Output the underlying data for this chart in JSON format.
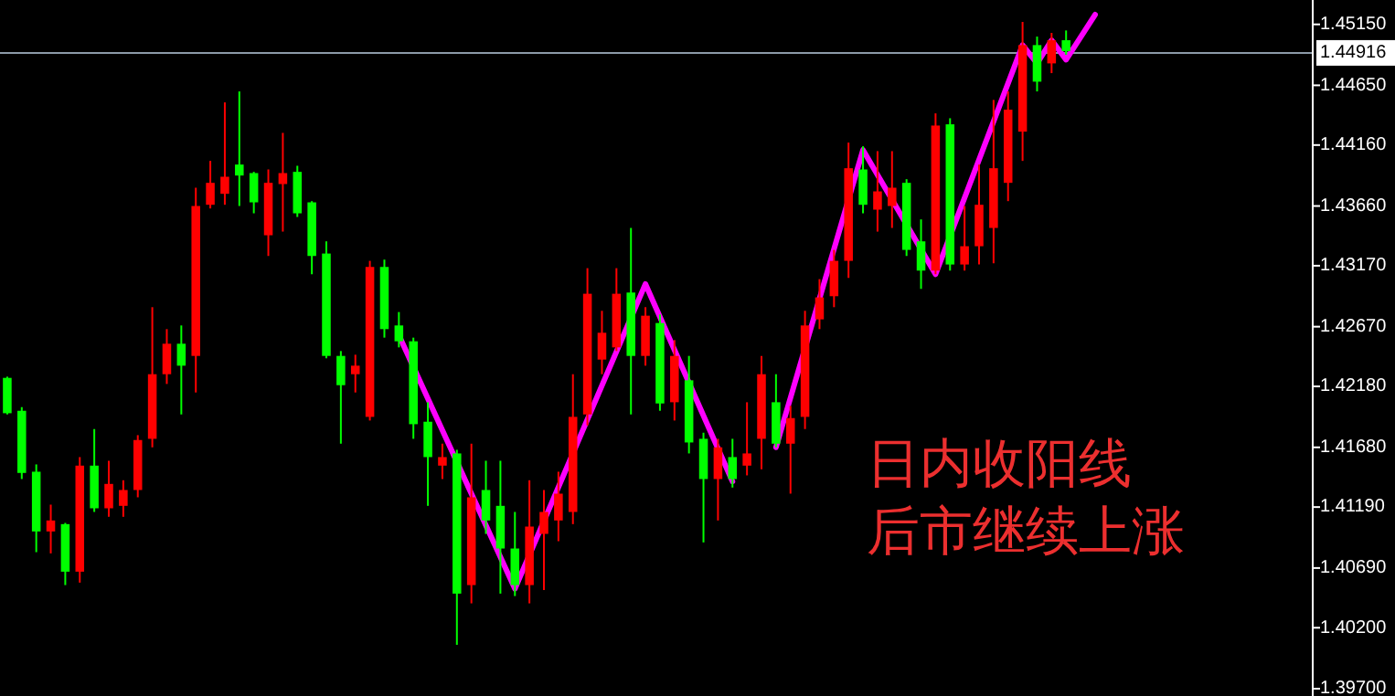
{
  "chart_data": {
    "type": "candlestick",
    "categories": [
      null,
      null,
      null,
      null,
      null,
      null,
      null,
      null,
      null,
      null,
      null,
      null,
      null,
      null,
      null,
      null,
      null,
      null,
      null,
      null,
      null,
      null,
      null,
      null,
      null,
      null,
      null,
      null,
      null,
      null,
      null,
      null,
      null,
      null,
      null,
      null,
      null,
      null,
      null,
      null,
      null,
      null,
      null,
      null,
      null,
      null,
      null,
      null,
      null,
      null,
      null,
      null,
      null,
      null,
      null,
      null,
      null,
      null,
      null,
      null,
      null,
      null,
      null,
      null,
      null,
      null,
      null,
      null,
      null,
      null,
      null,
      null,
      null,
      null,
      null,
      null,
      null,
      null,
      null,
      null,
      null,
      null,
      null,
      null,
      null,
      null,
      null,
      null,
      null,
      null
    ],
    "ohlc": [
      [
        1.4225,
        1.4226,
        1.4195,
        1.4196
      ],
      [
        1.4198,
        1.4201,
        1.4142,
        1.4147
      ],
      [
        1.4148,
        1.4154,
        1.4082,
        1.4099
      ],
      [
        1.4099,
        1.4121,
        1.4081,
        1.4108
      ],
      [
        1.4105,
        1.4106,
        1.4055,
        1.4066
      ],
      [
        1.4066,
        1.416,
        1.4057,
        1.4153
      ],
      [
        1.4153,
        1.4183,
        1.4115,
        1.4118
      ],
      [
        1.4118,
        1.4157,
        1.4111,
        1.4138
      ],
      [
        1.412,
        1.4141,
        1.4111,
        1.4133
      ],
      [
        1.4133,
        1.4178,
        1.4127,
        1.4174
      ],
      [
        1.4175,
        1.4283,
        1.4168,
        1.4228
      ],
      [
        1.4228,
        1.4265,
        1.422,
        1.4253
      ],
      [
        1.4253,
        1.4268,
        1.4195,
        1.4235
      ],
      [
        1.4243,
        1.4381,
        1.4213,
        1.4366
      ],
      [
        1.4367,
        1.4403,
        1.4364,
        1.4385
      ],
      [
        1.4376,
        1.4451,
        1.4367,
        1.439
      ],
      [
        1.44,
        1.446,
        1.4366,
        1.4391
      ],
      [
        1.4393,
        1.4394,
        1.436,
        1.4369
      ],
      [
        1.4342,
        1.4396,
        1.4325,
        1.4385
      ],
      [
        1.4384,
        1.4426,
        1.4345,
        1.4393
      ],
      [
        1.4394,
        1.4399,
        1.4357,
        1.436
      ],
      [
        1.4369,
        1.437,
        1.431,
        1.4325
      ],
      [
        1.4327,
        1.4337,
        1.4241,
        1.4243
      ],
      [
        1.4243,
        1.4247,
        1.4171,
        1.4219
      ],
      [
        1.4228,
        1.4244,
        1.4213,
        1.4235
      ],
      [
        1.4193,
        1.4321,
        1.419,
        1.4316
      ],
      [
        1.4316,
        1.4322,
        1.4258,
        1.4265
      ],
      [
        1.4268,
        1.4279,
        1.425,
        1.4255
      ],
      [
        1.4255,
        1.4258,
        1.4175,
        1.4187
      ],
      [
        1.4189,
        1.4205,
        1.412,
        1.416
      ],
      [
        1.4153,
        1.4171,
        1.4142,
        1.416
      ],
      [
        1.4163,
        1.4166,
        1.4006,
        1.4048
      ],
      [
        1.4055,
        1.4171,
        1.404,
        1.4127
      ],
      [
        1.4133,
        1.4157,
        1.4097,
        1.4108
      ],
      [
        1.412,
        1.4157,
        1.4048,
        1.4085
      ],
      [
        1.4085,
        1.4115,
        1.4046,
        1.4055
      ],
      [
        1.4055,
        1.4141,
        1.404,
        1.4103
      ],
      [
        1.4097,
        1.4133,
        1.4051,
        1.4115
      ],
      [
        1.4108,
        1.4148,
        1.4091,
        1.413
      ],
      [
        1.4115,
        1.4228,
        1.4105,
        1.4193
      ],
      [
        1.4195,
        1.4315,
        1.4186,
        1.4294
      ],
      [
        1.424,
        1.428,
        1.4228,
        1.4262
      ],
      [
        1.425,
        1.4315,
        1.4247,
        1.4294
      ],
      [
        1.4295,
        1.4348,
        1.4195,
        1.4243
      ],
      [
        1.4243,
        1.4283,
        1.4235,
        1.4276
      ],
      [
        1.427,
        1.4277,
        1.4198,
        1.4204
      ],
      [
        1.4205,
        1.4256,
        1.419,
        1.4243
      ],
      [
        1.4223,
        1.4243,
        1.4163,
        1.4172
      ],
      [
        1.4175,
        1.418,
        1.409,
        1.4142
      ],
      [
        1.4142,
        1.4175,
        1.4108,
        1.4168
      ],
      [
        1.416,
        1.4175,
        1.4135,
        1.4142
      ],
      [
        1.4153,
        1.4205,
        1.4145,
        1.4163
      ],
      [
        1.4175,
        1.4243,
        1.415,
        1.4228
      ],
      [
        1.4205,
        1.4228,
        1.4168,
        1.4171
      ],
      [
        1.4171,
        1.4202,
        1.413,
        1.4192
      ],
      [
        1.4193,
        1.428,
        1.4183,
        1.4268
      ],
      [
        1.4273,
        1.4306,
        1.4265,
        1.4291
      ],
      [
        1.4292,
        1.433,
        1.4283,
        1.4321
      ],
      [
        1.4321,
        1.4418,
        1.4307,
        1.4397
      ],
      [
        1.4396,
        1.4415,
        1.436,
        1.4367
      ],
      [
        1.4363,
        1.4411,
        1.4345,
        1.4378
      ],
      [
        1.4366,
        1.4411,
        1.4348,
        1.4381
      ],
      [
        1.4385,
        1.4388,
        1.4325,
        1.433
      ],
      [
        1.4337,
        1.4355,
        1.4298,
        1.4313
      ],
      [
        1.4313,
        1.4442,
        1.431,
        1.4432
      ],
      [
        1.4433,
        1.4438,
        1.4313,
        1.4318
      ],
      [
        1.4318,
        1.4366,
        1.4313,
        1.4333
      ],
      [
        1.4333,
        1.44,
        1.4318,
        1.4367
      ],
      [
        1.4348,
        1.4453,
        1.4319,
        1.4397
      ],
      [
        1.4385,
        1.446,
        1.437,
        1.4445
      ],
      [
        1.4427,
        1.4517,
        1.4403,
        1.4498
      ],
      [
        1.4498,
        1.4505,
        1.446,
        1.4468
      ],
      [
        1.4483,
        1.4508,
        1.4475,
        1.4502
      ],
      [
        1.4502,
        1.451,
        1.449,
        1.4493
      ],
      null,
      null,
      null,
      null,
      null,
      null,
      null,
      null,
      null,
      null,
      null,
      null,
      null,
      null,
      null,
      null
    ],
    "colors": [
      "#00ff00",
      "#00ff00",
      "#00ff00",
      "#ff0000",
      "#00ff00",
      "#ff0000",
      "#00ff00",
      "#ff0000",
      "#ff0000",
      "#ff0000",
      "#ff0000",
      "#ff0000",
      "#00ff00",
      "#ff0000",
      "#ff0000",
      "#ff0000",
      "#00ff00",
      "#00ff00",
      "#ff0000",
      "#ff0000",
      "#00ff00",
      "#00ff00",
      "#00ff00",
      "#00ff00",
      "#ff0000",
      "#ff0000",
      "#00ff00",
      "#00ff00",
      "#00ff00",
      "#00ff00",
      "#ff0000",
      "#00ff00",
      "#ff0000",
      "#00ff00",
      "#00ff00",
      "#00ff00",
      "#ff0000",
      "#ff0000",
      "#ff0000",
      "#ff0000",
      "#ff0000",
      "#ff0000",
      "#ff0000",
      "#00ff00",
      "#ff0000",
      "#00ff00",
      "#ff0000",
      "#00ff00",
      "#00ff00",
      "#ff0000",
      "#00ff00",
      "#ff0000",
      "#ff0000",
      "#00ff00",
      "#ff0000",
      "#ff0000",
      "#ff0000",
      "#ff0000",
      "#ff0000",
      "#00ff00",
      "#ff0000",
      "#ff0000",
      "#00ff00",
      "#00ff00",
      "#ff0000",
      "#00ff00",
      "#ff0000",
      "#ff0000",
      "#ff0000",
      "#ff0000",
      "#ff0000",
      "#00ff00",
      "#ff0000",
      "#00ff00",
      null,
      null,
      null,
      null,
      null,
      null,
      null,
      null,
      null,
      null,
      null,
      null,
      null,
      null,
      null,
      null
    ],
    "series": [
      {
        "type": "line",
        "color": "#ff00ff",
        "values": [
          null,
          null,
          null,
          null,
          null,
          null,
          null,
          null,
          null,
          null,
          null,
          null,
          null,
          null,
          null,
          null,
          null,
          null,
          null,
          null,
          null,
          null,
          null,
          null,
          null,
          null,
          null,
          1.426,
          null,
          null,
          null,
          null,
          null,
          null,
          null,
          1.4052,
          null,
          null,
          null,
          null,
          null,
          null,
          null,
          null,
          1.4302,
          null,
          null,
          null,
          null,
          null,
          1.414,
          null,
          null,
          null,
          null,
          null,
          null,
          null,
          null,
          null,
          null,
          null,
          null,
          null,
          null,
          null,
          null,
          null,
          null,
          null,
          null,
          null,
          null,
          null,
          null,
          null,
          null,
          null,
          null,
          null,
          null,
          null,
          null,
          null,
          null,
          null,
          null,
          null,
          null,
          null
        ]
      },
      {
        "type": "line",
        "color": "#ff00ff",
        "values": [
          null,
          null,
          null,
          null,
          null,
          null,
          null,
          null,
          null,
          null,
          null,
          null,
          null,
          null,
          null,
          null,
          null,
          null,
          null,
          null,
          null,
          null,
          null,
          null,
          null,
          null,
          null,
          null,
          null,
          null,
          null,
          null,
          null,
          null,
          null,
          null,
          null,
          null,
          null,
          null,
          null,
          null,
          null,
          null,
          null,
          null,
          null,
          null,
          null,
          null,
          null,
          null,
          null,
          1.4168,
          null,
          null,
          null,
          null,
          null,
          1.4412,
          null,
          null,
          null,
          null,
          1.431,
          null,
          null,
          null,
          null,
          null,
          1.4498,
          1.4483,
          1.4502,
          1.4486,
          null,
          1.4523,
          null,
          null,
          null,
          null,
          null,
          null,
          null,
          null,
          null,
          null,
          null,
          null,
          null,
          null
        ]
      }
    ],
    "ylim": [
      1.3964,
      1.4535
    ],
    "yticks": [
      {
        "value": 1.4515,
        "label": "1.45150"
      },
      {
        "value": 1.4465,
        "label": "1.44650"
      },
      {
        "value": 1.4416,
        "label": "1.44160"
      },
      {
        "value": 1.4366,
        "label": "1.43660"
      },
      {
        "value": 1.4317,
        "label": "1.43170"
      },
      {
        "value": 1.4267,
        "label": "1.42670"
      },
      {
        "value": 1.4218,
        "label": "1.42180"
      },
      {
        "value": 1.4168,
        "label": "1.41680"
      },
      {
        "value": 1.4119,
        "label": "1.41190"
      },
      {
        "value": 1.4069,
        "label": "1.40690"
      },
      {
        "value": 1.402,
        "label": "1.40200"
      },
      {
        "value": 1.397,
        "label": "1.39700"
      }
    ],
    "tick_labels": "y",
    "ref_lines": [
      {
        "axis": "y",
        "value": 1.44916,
        "label": "1.44916",
        "color": "#8c9aa8"
      }
    ],
    "annotations": [
      "日内收阳线",
      "后市继续上涨"
    ]
  }
}
